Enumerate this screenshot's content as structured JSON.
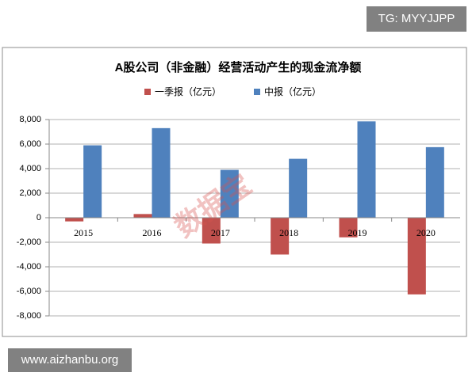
{
  "chart_data": {
    "type": "bar",
    "title": "A股公司（非金融）经营活动产生的现金流净额",
    "categories": [
      "2015",
      "2016",
      "2017",
      "2018",
      "2019",
      "2020"
    ],
    "series": [
      {
        "name": "一季报（亿元）",
        "color": "#c0504d",
        "values": [
          -300,
          300,
          -2100,
          -3000,
          -1600,
          -6250
        ]
      },
      {
        "name": "中报（亿元）",
        "color": "#4f81bd",
        "values": [
          5900,
          7300,
          3900,
          4800,
          7850,
          5750
        ]
      }
    ],
    "ylim": [
      -8000,
      8000
    ],
    "yticks": [
      {
        "value": -8000,
        "label": "-8,000"
      },
      {
        "value": -6000,
        "label": "-6,000"
      },
      {
        "value": -4000,
        "label": "-4,000"
      },
      {
        "value": -2000,
        "label": "-2,000"
      },
      0,
      {
        "value": 2000,
        "label": "2,000"
      },
      {
        "value": 4000,
        "label": "4,000"
      },
      {
        "value": 6000,
        "label": "6,000"
      },
      {
        "value": 8000,
        "label": "8,000"
      }
    ],
    "grid": true
  },
  "watermark": "数据宝",
  "badge_top": "TG: MYYJJPP",
  "badge_bottom": "www.aizhanbu.org"
}
